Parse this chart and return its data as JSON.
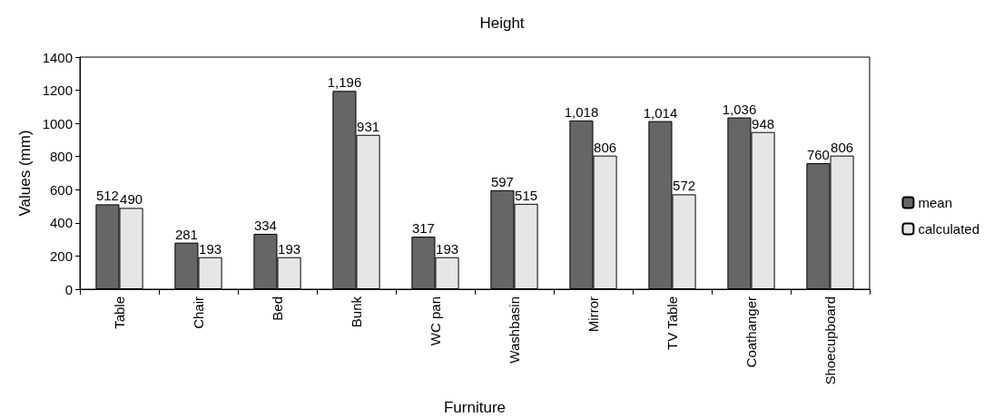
{
  "chart_data": {
    "type": "bar",
    "title": "Height",
    "xlabel": "Furniture",
    "ylabel": "Values (mm)",
    "categories": [
      "Table",
      "Chair",
      "Bed",
      "Bunk",
      "WC pan",
      "Washbasin",
      "Mirror",
      "TV Table",
      "Coathanger",
      "Shoecupboard"
    ],
    "series": [
      {
        "name": "mean",
        "color": "#666666",
        "values": [
          512,
          281,
          334,
          1196,
          317,
          597,
          1018,
          1014,
          1036,
          760
        ],
        "value_labels": [
          "512",
          "281",
          "334",
          "1,196",
          "317",
          "597",
          "1,018",
          "1,014",
          "1,036",
          "760"
        ]
      },
      {
        "name": "calculated",
        "color": "#e6e6e6",
        "values": [
          490,
          193,
          193,
          931,
          193,
          515,
          806,
          572,
          948,
          806
        ],
        "value_labels": [
          "490",
          "193",
          "193",
          "931",
          "193",
          "515",
          "806",
          "572",
          "948",
          "806"
        ]
      }
    ],
    "ylim": [
      0,
      1400
    ],
    "yticks": [
      0,
      200,
      400,
      600,
      800,
      1000,
      1200,
      1400
    ],
    "grid": false,
    "legend": "right"
  }
}
